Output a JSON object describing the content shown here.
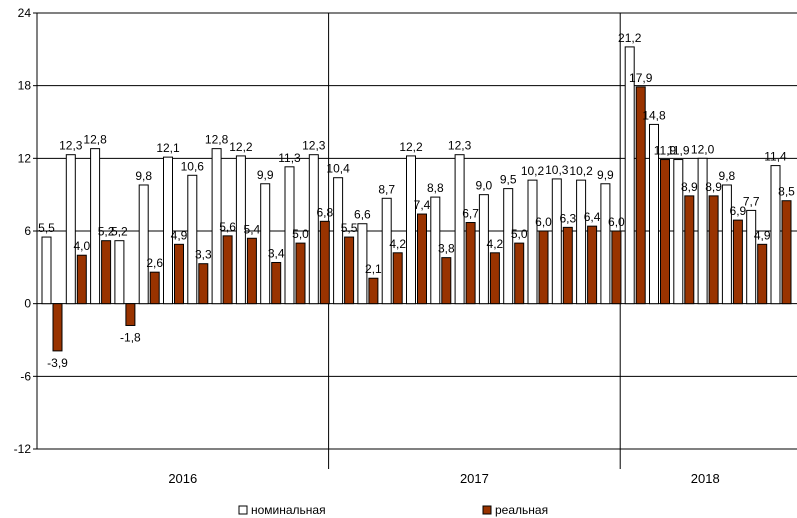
{
  "chart_data": {
    "type": "bar",
    "ylim": [
      -12,
      24
    ],
    "yticks": [
      "24",
      "18",
      "12",
      "6",
      "0",
      "-6",
      "-12"
    ],
    "ytick_values": [
      24,
      18,
      12,
      6,
      0,
      -6,
      -12
    ],
    "year_labels": [
      "2016",
      "2017",
      "2018"
    ],
    "year_months": [
      12,
      12,
      7
    ],
    "categories": [
      "2016-01",
      "2016-02",
      "2016-03",
      "2016-04",
      "2016-05",
      "2016-06",
      "2016-07",
      "2016-08",
      "2016-09",
      "2016-10",
      "2016-11",
      "2016-12",
      "2017-01",
      "2017-02",
      "2017-03",
      "2017-04",
      "2017-05",
      "2017-06",
      "2017-07",
      "2017-08",
      "2017-09",
      "2017-10",
      "2017-11",
      "2017-12",
      "2018-01",
      "2018-02",
      "2018-03",
      "2018-04",
      "2018-05",
      "2018-06",
      "2018-07"
    ],
    "series": [
      {
        "name": "номинальная",
        "color": "#ffffff",
        "values": [
          5.5,
          12.3,
          12.8,
          5.2,
          9.8,
          12.1,
          10.6,
          12.8,
          12.2,
          9.9,
          11.3,
          12.3,
          10.4,
          6.6,
          8.7,
          12.2,
          8.8,
          12.3,
          9.0,
          9.5,
          10.2,
          10.3,
          10.2,
          9.9,
          21.2,
          14.8,
          11.9,
          12.0,
          9.8,
          7.7,
          11.4
        ],
        "labels": [
          "5,5",
          "12,3",
          "12,8",
          "5,2",
          "9,8",
          "12,1",
          "10,6",
          "12,8",
          "12,2",
          "9,9",
          "11,3",
          "12,3",
          "10,4",
          "6,6",
          "8,7",
          "12,2",
          "8,8",
          "12,3",
          "9,0",
          "9,5",
          "10,2",
          "10,3",
          "10,2",
          "9,9",
          "21,2",
          "14,8",
          "11,9",
          "12,0",
          "9,8",
          "7,7",
          "11,4"
        ]
      },
      {
        "name": "реальная",
        "color": "#993300",
        "values": [
          -3.9,
          4.0,
          5.2,
          -1.8,
          2.6,
          4.9,
          3.3,
          5.6,
          5.4,
          3.4,
          5.0,
          6.8,
          5.5,
          2.1,
          4.2,
          7.4,
          3.8,
          6.7,
          4.2,
          5.0,
          6.0,
          6.3,
          6.4,
          6.0,
          17.9,
          11.9,
          8.9,
          8.9,
          6.9,
          4.9,
          8.5
        ],
        "labels": [
          "-3,9",
          "4,0",
          "5,2",
          "-1,8",
          "2,6",
          "4,9",
          "3,3",
          "5,6",
          "5,4",
          "3,4",
          "5,0",
          "6,8",
          "5,5",
          "2,1",
          "4,2",
          "7,4",
          "3,8",
          "6,7",
          "4,2",
          "5,0",
          "6,0",
          "6,3",
          "6,4",
          "6,0",
          "17,9",
          "11,9",
          "8,9",
          "8,9",
          "6,9",
          "4,9",
          "8,5"
        ]
      }
    ],
    "grid": true,
    "legend_position": "bottom-center",
    "legend": [
      {
        "label": "номинальная",
        "color": "#ffffff"
      },
      {
        "label": "реальная",
        "color": "#993300"
      }
    ]
  }
}
